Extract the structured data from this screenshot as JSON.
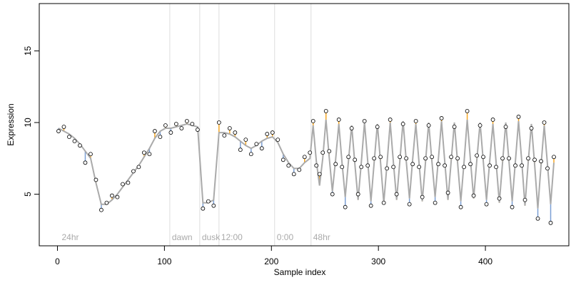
{
  "chart_data": {
    "type": "scatter",
    "x_label": "Sample index",
    "y_label": "Expression",
    "xlim": [
      -17,
      478
    ],
    "ylim": [
      1.4,
      18.3
    ],
    "xticks": [
      0,
      100,
      200,
      300,
      400
    ],
    "yticks": [
      5,
      10,
      15
    ],
    "line_color": "#aaaaaa",
    "up_color": "#f5a623",
    "down_color": "#7b9fd4",
    "point_color": "#ffffff",
    "vlines": [
      105,
      133,
      151,
      203,
      237
    ],
    "annotations": [
      {
        "x": 2,
        "label": "24hr"
      },
      {
        "x": 105,
        "label": "dawn"
      },
      {
        "x": 133,
        "label": "dusk"
      },
      {
        "x": 151,
        "label": "12:00"
      },
      {
        "x": 203,
        "label": "0:00"
      },
      {
        "x": 237,
        "label": "48hr"
      }
    ],
    "x": [
      1,
      6,
      11,
      16,
      21,
      26,
      31,
      36,
      41,
      46,
      51,
      56,
      61,
      66,
      71,
      76,
      81,
      86,
      91,
      96,
      101,
      106,
      111,
      116,
      121,
      126,
      131,
      136,
      141,
      146,
      151,
      156,
      161,
      166,
      171,
      176,
      181,
      186,
      191,
      196,
      201,
      206,
      211,
      216,
      221,
      226,
      231,
      236,
      239,
      242,
      245,
      248,
      251,
      254,
      257,
      260,
      263,
      266,
      269,
      272,
      275,
      278,
      281,
      284,
      287,
      290,
      293,
      296,
      299,
      302,
      305,
      308,
      311,
      314,
      317,
      320,
      323,
      326,
      329,
      332,
      335,
      338,
      341,
      344,
      347,
      350,
      353,
      356,
      359,
      362,
      365,
      368,
      371,
      374,
      377,
      380,
      383,
      386,
      389,
      392,
      395,
      398,
      401,
      404,
      407,
      410,
      413,
      416,
      419,
      422,
      425,
      428,
      431,
      434,
      437,
      440,
      443,
      446,
      449,
      452,
      455,
      458,
      461,
      464
    ],
    "fitted": [
      9.6,
      9.4,
      9.2,
      8.9,
      8.5,
      8.0,
      7.5,
      5.8,
      4.3,
      4.3,
      4.6,
      5.0,
      5.5,
      6.0,
      6.5,
      7.0,
      7.6,
      8.2,
      8.9,
      9.4,
      9.6,
      9.6,
      9.7,
      9.8,
      9.9,
      9.8,
      9.7,
      4.4,
      4.4,
      4.6,
      9.3,
      9.3,
      9.2,
      9.0,
      8.7,
      8.4,
      8.2,
      8.4,
      8.7,
      8.9,
      9.0,
      8.6,
      7.8,
      7.2,
      6.8,
      6.8,
      7.2,
      7.5,
      9.8,
      7.3,
      5.6,
      7.5,
      10.2,
      7.6,
      5.2,
      7.4,
      9.9,
      7.2,
      4.8,
      7.3,
      9.8,
      7.1,
      4.6,
      7.2,
      10.0,
      7.3,
      4.5,
      7.2,
      9.9,
      7.2,
      4.4,
      7.1,
      10.0,
      7.2,
      4.6,
      7.3,
      10.1,
      7.3,
      4.7,
      7.4,
      9.9,
      7.2,
      4.5,
      7.2,
      10.0,
      7.3,
      4.8,
      7.4,
      10.1,
      7.3,
      4.6,
      7.3,
      10.0,
      7.2,
      4.5,
      7.2,
      10.2,
      7.4,
      4.7,
      7.4,
      10.0,
      7.3,
      4.6,
      7.3,
      9.9,
      7.2,
      4.4,
      7.2,
      10.0,
      7.3,
      4.5,
      7.3,
      10.1,
      7.3,
      4.2,
      7.2,
      9.9,
      7.1,
      4.0,
      7.0,
      9.8,
      7.1,
      4.3,
      7.2
    ],
    "values": [
      9.4,
      9.7,
      9.0,
      8.7,
      8.4,
      7.2,
      7.8,
      6.0,
      3.9,
      4.4,
      4.9,
      4.8,
      5.7,
      5.8,
      6.6,
      6.9,
      7.9,
      7.8,
      9.4,
      9.0,
      9.8,
      9.3,
      9.9,
      9.6,
      10.1,
      9.9,
      9.5,
      4.0,
      4.5,
      4.2,
      10.0,
      9.1,
      9.6,
      9.3,
      8.1,
      8.8,
      7.8,
      8.5,
      8.2,
      9.2,
      9.3,
      8.8,
      7.4,
      7.0,
      6.4,
      6.7,
      7.6,
      7.9,
      10.1,
      7.0,
      6.4,
      7.9,
      10.8,
      8.0,
      5.0,
      7.1,
      10.2,
      6.9,
      4.1,
      7.6,
      9.6,
      7.4,
      5.0,
      6.9,
      10.1,
      7.0,
      4.2,
      7.5,
      9.7,
      7.6,
      4.4,
      6.8,
      10.2,
      6.9,
      5.0,
      7.6,
      9.9,
      7.5,
      4.3,
      7.1,
      10.1,
      6.9,
      4.8,
      7.5,
      9.8,
      7.6,
      4.4,
      7.1,
      10.3,
      7.0,
      5.1,
      7.6,
      9.7,
      7.5,
      4.1,
      6.9,
      10.8,
      7.1,
      4.9,
      7.7,
      9.8,
      7.6,
      4.3,
      7.0,
      10.2,
      6.9,
      4.7,
      7.5,
      9.7,
      7.5,
      4.1,
      7.0,
      10.4,
      7.0,
      4.6,
      7.5,
      9.6,
      7.4,
      3.3,
      7.3,
      10.0,
      6.8,
      3.0,
      7.6
    ]
  }
}
